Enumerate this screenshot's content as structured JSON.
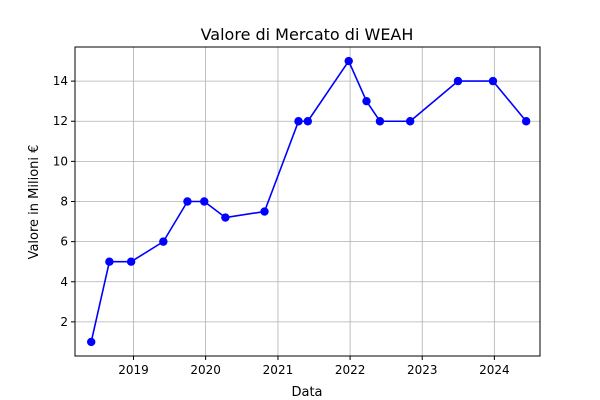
{
  "chart_data": {
    "type": "line",
    "title": "Valore di Mercato di WEAH",
    "xlabel": "Data",
    "ylabel": "Valore in Milioni €",
    "grid": true,
    "x_ticks": [
      "2019",
      "2020",
      "2021",
      "2022",
      "2023",
      "2024"
    ],
    "y_ticks": [
      2,
      4,
      6,
      8,
      10,
      12,
      14
    ],
    "xlim": [
      "2018-03-11",
      "2024-08-19"
    ],
    "ylim": [
      0.3,
      15.7
    ],
    "series": [
      {
        "color": "#0000ff",
        "marker": "circle",
        "points": [
          {
            "x": "2018-06-01",
            "y": 1
          },
          {
            "x": "2018-09-01",
            "y": 5
          },
          {
            "x": "2018-12-20",
            "y": 5
          },
          {
            "x": "2019-06-01",
            "y": 6
          },
          {
            "x": "2019-10-01",
            "y": 8
          },
          {
            "x": "2019-12-25",
            "y": 8
          },
          {
            "x": "2020-04-10",
            "y": 7.2
          },
          {
            "x": "2020-10-25",
            "y": 7.5
          },
          {
            "x": "2021-04-15",
            "y": 12
          },
          {
            "x": "2021-06-01",
            "y": 12
          },
          {
            "x": "2021-12-25",
            "y": 15
          },
          {
            "x": "2022-03-25",
            "y": 13
          },
          {
            "x": "2022-06-01",
            "y": 12
          },
          {
            "x": "2022-11-01",
            "y": 12
          },
          {
            "x": "2023-07-01",
            "y": 14
          },
          {
            "x": "2023-12-25",
            "y": 14
          },
          {
            "x": "2024-06-10",
            "y": 12
          }
        ]
      }
    ]
  }
}
